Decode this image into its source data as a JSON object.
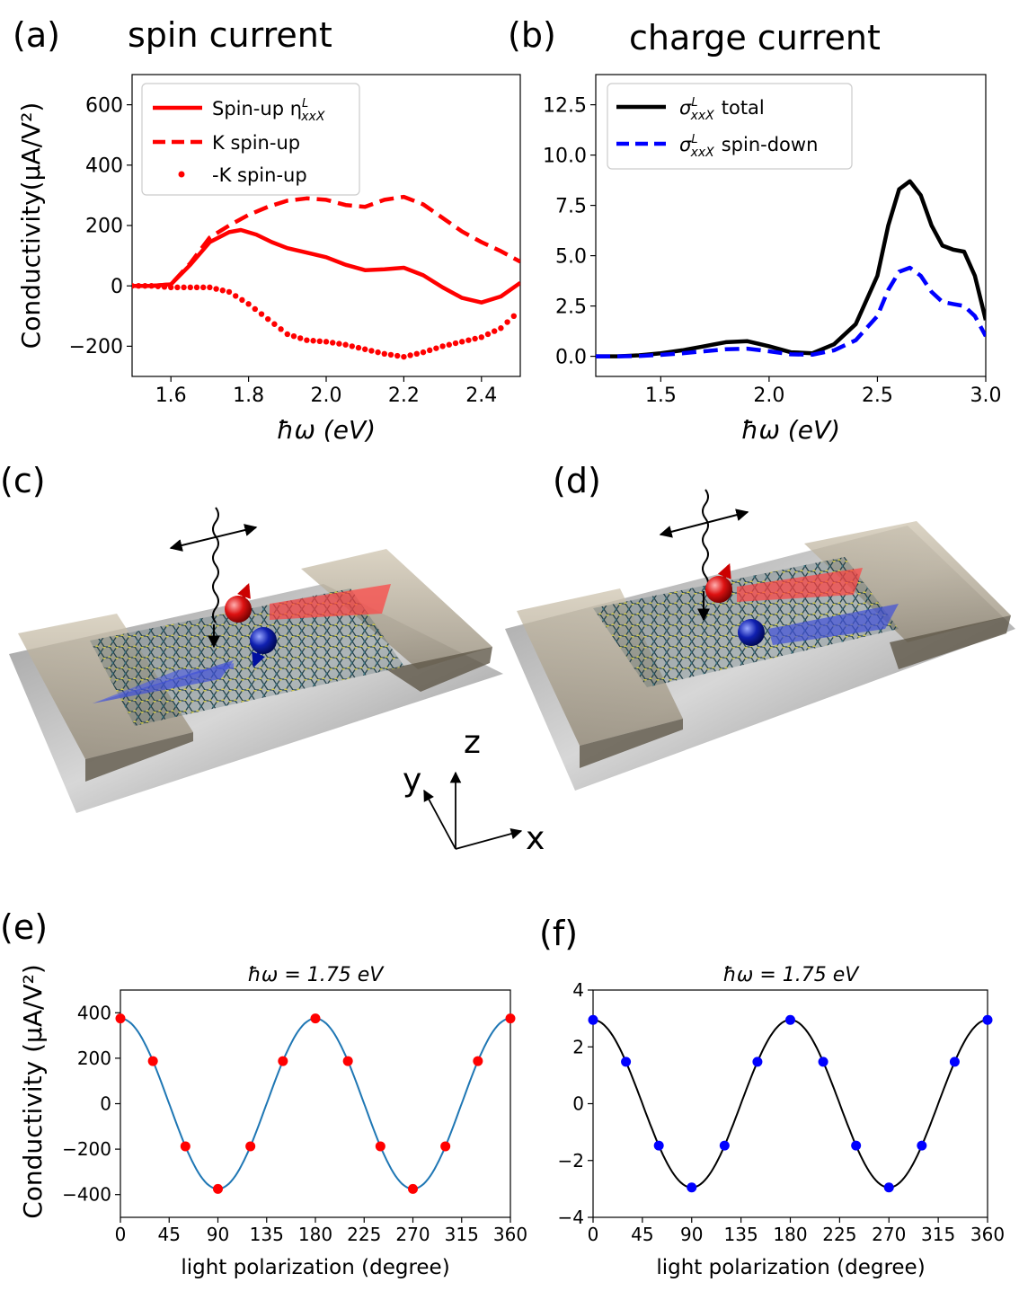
{
  "panels": {
    "a": {
      "letter": "(a)",
      "title": "spin current"
    },
    "b": {
      "letter": "(b)",
      "title": "charge current"
    },
    "c": {
      "letter": "(c)"
    },
    "d": {
      "letter": "(d)"
    },
    "e": {
      "letter": "(e)",
      "title": "ħω = 1.75 eV"
    },
    "f": {
      "letter": "(f)",
      "title": "ħω = 1.75 eV"
    }
  },
  "axes_labels": {
    "a_ylabel": "Conductivity(μA/V²)",
    "a_xlabel": "ħω (eV)",
    "b_xlabel": "ħω (eV)",
    "e_ylabel": "Conductivity (μA/V²)",
    "e_xlabel": "light polarization (degree)",
    "f_xlabel": "light polarization (degree)"
  },
  "legend_a": [
    "Spin-up η",
    "K spin-up",
    "-K spin-up"
  ],
  "legend_a_sub": {
    "sup": "L",
    "sub": "xxX"
  },
  "legend_b": [
    "σ",
    "total",
    "spin-down"
  ],
  "legend_b_sub": {
    "sup": "L",
    "sub": "xxX"
  },
  "coords": {
    "x": "x",
    "y": "y",
    "z": "z"
  },
  "colors": {
    "red": "#ff0000",
    "blue": "#0000ff",
    "black": "#000000",
    "teal": "#1f77b4"
  },
  "chart_data": [
    {
      "id": "a",
      "type": "line",
      "xlim": [
        1.5,
        2.5
      ],
      "ylim": [
        -300,
        700
      ],
      "xticks": [
        1.6,
        1.8,
        2.0,
        2.2,
        2.4
      ],
      "yticks": [
        -200,
        0,
        200,
        400,
        600
      ],
      "series": [
        {
          "name": "Spin-up η^L_xxX",
          "style": "solid",
          "color": "#ff0000",
          "x": [
            1.5,
            1.55,
            1.6,
            1.65,
            1.7,
            1.75,
            1.78,
            1.82,
            1.86,
            1.9,
            1.95,
            2.0,
            2.05,
            2.1,
            2.15,
            2.2,
            2.25,
            2.3,
            2.35,
            2.4,
            2.45,
            2.5
          ],
          "y": [
            0,
            0,
            5,
            70,
            145,
            178,
            185,
            170,
            145,
            125,
            110,
            95,
            70,
            52,
            55,
            60,
            35,
            -5,
            -40,
            -55,
            -35,
            10
          ]
        },
        {
          "name": "K spin-up",
          "style": "dashed",
          "color": "#ff0000",
          "x": [
            1.5,
            1.55,
            1.6,
            1.65,
            1.7,
            1.75,
            1.8,
            1.85,
            1.9,
            1.95,
            2.0,
            2.05,
            2.1,
            2.15,
            2.2,
            2.25,
            2.3,
            2.35,
            2.4,
            2.45,
            2.5
          ],
          "y": [
            0,
            0,
            5,
            75,
            160,
            200,
            235,
            262,
            282,
            290,
            285,
            268,
            262,
            285,
            295,
            270,
            225,
            180,
            145,
            115,
            80
          ]
        },
        {
          "name": "-K spin-up",
          "style": "dotted",
          "color": "#ff0000",
          "x": [
            1.5,
            1.55,
            1.6,
            1.65,
            1.7,
            1.75,
            1.8,
            1.85,
            1.9,
            1.95,
            2.0,
            2.05,
            2.1,
            2.15,
            2.2,
            2.25,
            2.3,
            2.35,
            2.4,
            2.45,
            2.5
          ],
          "y": [
            0,
            0,
            -5,
            -5,
            -5,
            -20,
            -60,
            -110,
            -160,
            -180,
            -185,
            -195,
            -210,
            -225,
            -235,
            -220,
            -200,
            -185,
            -170,
            -140,
            -80
          ]
        }
      ]
    },
    {
      "id": "b",
      "type": "line",
      "xlim": [
        1.2,
        3.0
      ],
      "ylim": [
        -1.0,
        14.0
      ],
      "xticks": [
        1.5,
        2.0,
        2.5,
        3.0
      ],
      "yticks": [
        0.0,
        2.5,
        5.0,
        7.5,
        10.0,
        12.5
      ],
      "series": [
        {
          "name": "σ^L_xxX total",
          "style": "solid",
          "color": "#000000",
          "x": [
            1.2,
            1.3,
            1.4,
            1.5,
            1.6,
            1.7,
            1.8,
            1.9,
            2.0,
            2.1,
            2.2,
            2.3,
            2.4,
            2.5,
            2.55,
            2.6,
            2.65,
            2.7,
            2.75,
            2.8,
            2.85,
            2.9,
            2.95,
            3.0
          ],
          "y": [
            0,
            0,
            0.05,
            0.15,
            0.3,
            0.5,
            0.7,
            0.75,
            0.5,
            0.2,
            0.15,
            0.6,
            1.6,
            4.0,
            6.5,
            8.3,
            8.7,
            8.0,
            6.5,
            5.5,
            5.3,
            5.2,
            4.0,
            1.8
          ]
        },
        {
          "name": "σ^L_xxX spin-down",
          "style": "dashed",
          "color": "#0000ff",
          "x": [
            1.2,
            1.3,
            1.4,
            1.5,
            1.6,
            1.7,
            1.8,
            1.9,
            2.0,
            2.1,
            2.2,
            2.3,
            2.4,
            2.5,
            2.55,
            2.6,
            2.65,
            2.7,
            2.75,
            2.8,
            2.85,
            2.9,
            2.95,
            3.0
          ],
          "y": [
            0,
            0,
            0.02,
            0.07,
            0.15,
            0.25,
            0.35,
            0.38,
            0.25,
            0.1,
            0.08,
            0.3,
            0.8,
            2.0,
            3.3,
            4.2,
            4.4,
            4.0,
            3.2,
            2.7,
            2.6,
            2.5,
            2.0,
            1.0
          ]
        }
      ]
    },
    {
      "id": "e",
      "type": "line",
      "xlim": [
        0,
        360
      ],
      "ylim": [
        -500,
        500
      ],
      "xticks": [
        0,
        45,
        90,
        135,
        180,
        225,
        270,
        315,
        360
      ],
      "yticks": [
        -400,
        -200,
        0,
        200,
        400
      ],
      "curve": {
        "amplitude": 375,
        "form": "A*cos(2θ)",
        "color": "#1f77b4"
      },
      "points": {
        "color": "#ff0000",
        "x": [
          0,
          30,
          60,
          90,
          120,
          150,
          180,
          210,
          240,
          270,
          300,
          330,
          360
        ],
        "y": [
          375,
          187.5,
          -187.5,
          -375,
          -187.5,
          187.5,
          375,
          187.5,
          -187.5,
          -375,
          -187.5,
          187.5,
          375
        ]
      }
    },
    {
      "id": "f",
      "type": "line",
      "xlim": [
        0,
        360
      ],
      "ylim": [
        -4,
        4
      ],
      "xticks": [
        0,
        45,
        90,
        135,
        180,
        225,
        270,
        315,
        360
      ],
      "yticks": [
        -4,
        -2,
        0,
        2,
        4
      ],
      "curve": {
        "amplitude": 2.95,
        "form": "A*cos(2θ)",
        "color": "#000000"
      },
      "points": {
        "color": "#0000ff",
        "x": [
          0,
          30,
          60,
          90,
          120,
          150,
          180,
          210,
          240,
          270,
          300,
          330,
          360
        ],
        "y": [
          2.95,
          1.475,
          -1.475,
          -2.95,
          -1.475,
          1.475,
          2.95,
          1.475,
          -1.475,
          -2.95,
          -1.475,
          1.475,
          2.95
        ]
      }
    }
  ]
}
